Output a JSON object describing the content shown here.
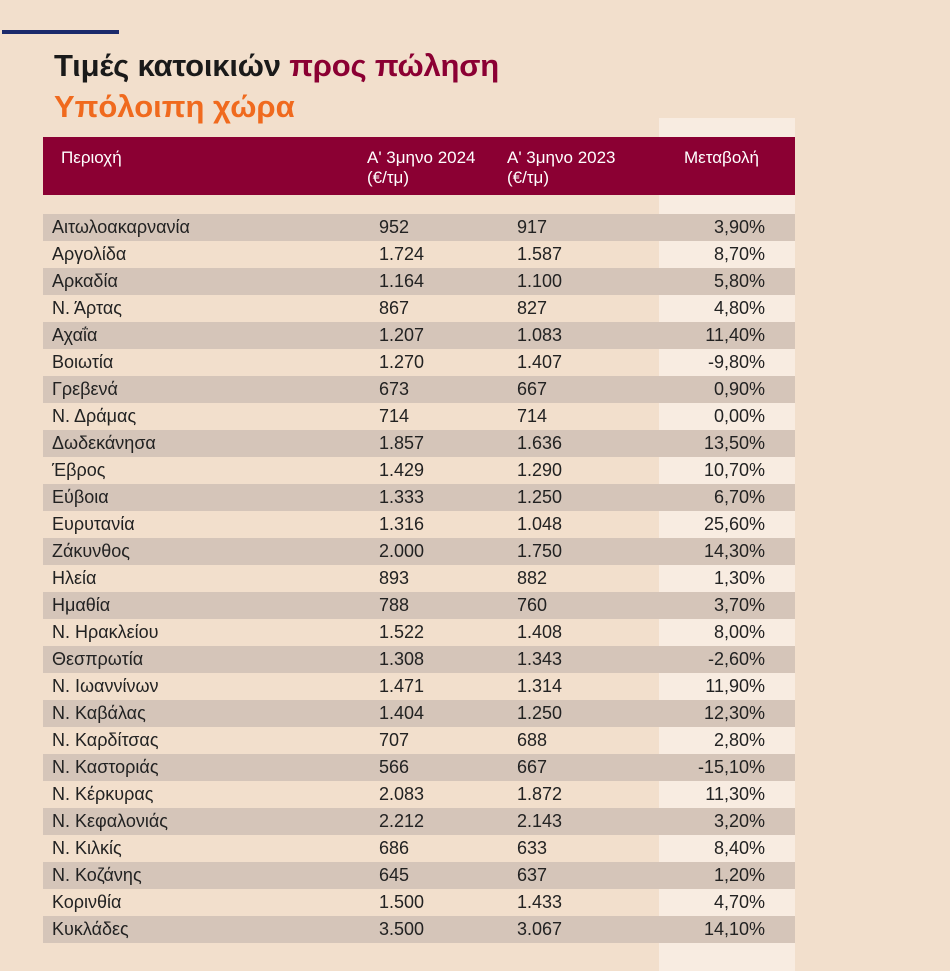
{
  "title": {
    "part1": "Τιμές κατοικιών",
    "part2": "προς πώληση"
  },
  "subtitle": "Υπόλοιπη χώρα",
  "colors": {
    "accent": "#8b0033",
    "orange": "#f06a1e",
    "navy": "#1b2a6b",
    "background": "#f2dfcc"
  },
  "table": {
    "headers": {
      "region": "Περιοχή",
      "q1_2024_line1": "Α' 3μηνο 2024",
      "q1_2024_line2": "(€/τμ)",
      "q1_2023_line1": "Α' 3μηνο 2023",
      "q1_2023_line2": "(€/τμ)",
      "change": "Μεταβολή"
    },
    "rows": [
      {
        "region": "Αιτωλοακαρνανία",
        "v2024": "952",
        "v2023": "917",
        "change": "3,90%"
      },
      {
        "region": "Αργολίδα",
        "v2024": "1.724",
        "v2023": "1.587",
        "change": "8,70%"
      },
      {
        "region": "Αρκαδία",
        "v2024": "1.164",
        "v2023": "1.100",
        "change": "5,80%"
      },
      {
        "region": "Ν. Άρτας",
        "v2024": "867",
        "v2023": "827",
        "change": "4,80%"
      },
      {
        "region": "Αχαΐα",
        "v2024": "1.207",
        "v2023": "1.083",
        "change": "11,40%"
      },
      {
        "region": "Βοιωτία",
        "v2024": "1.270",
        "v2023": "1.407",
        "change": "-9,80%"
      },
      {
        "region": "Γρεβενά",
        "v2024": "673",
        "v2023": "667",
        "change": "0,90%"
      },
      {
        "region": "Ν. Δράμας",
        "v2024": "714",
        "v2023": "714",
        "change": "0,00%"
      },
      {
        "region": "Δωδεκάνησα",
        "v2024": "1.857",
        "v2023": "1.636",
        "change": "13,50%"
      },
      {
        "region": "Έβρος",
        "v2024": "1.429",
        "v2023": "1.290",
        "change": "10,70%"
      },
      {
        "region": "Εύβοια",
        "v2024": "1.333",
        "v2023": "1.250",
        "change": "6,70%"
      },
      {
        "region": "Ευρυτανία",
        "v2024": "1.316",
        "v2023": "1.048",
        "change": "25,60%"
      },
      {
        "region": "Ζάκυνθος",
        "v2024": "2.000",
        "v2023": "1.750",
        "change": "14,30%"
      },
      {
        "region": "Ηλεία",
        "v2024": "893",
        "v2023": "882",
        "change": "1,30%"
      },
      {
        "region": "Ημαθία",
        "v2024": "788",
        "v2023": "760",
        "change": "3,70%"
      },
      {
        "region": "Ν. Ηρακλείου",
        "v2024": "1.522",
        "v2023": "1.408",
        "change": "8,00%"
      },
      {
        "region": "Θεσπρωτία",
        "v2024": "1.308",
        "v2023": "1.343",
        "change": "-2,60%"
      },
      {
        "region": "Ν. Ιωαννίνων",
        "v2024": "1.471",
        "v2023": "1.314",
        "change": "11,90%"
      },
      {
        "region": "Ν. Καβάλας",
        "v2024": "1.404",
        "v2023": "1.250",
        "change": "12,30%"
      },
      {
        "region": "Ν. Καρδίτσας",
        "v2024": "707",
        "v2023": "688",
        "change": "2,80%"
      },
      {
        "region": "Ν. Καστοριάς",
        "v2024": "566",
        "v2023": "667",
        "change": "-15,10%"
      },
      {
        "region": "Ν. Κέρκυρας",
        "v2024": "2.083",
        "v2023": "1.872",
        "change": "11,30%"
      },
      {
        "region": "Ν. Κεφαλονιάς",
        "v2024": "2.212",
        "v2023": "2.143",
        "change": "3,20%"
      },
      {
        "region": "Ν. Κιλκίς",
        "v2024": "686",
        "v2023": "633",
        "change": "8,40%"
      },
      {
        "region": "Ν. Κοζάνης",
        "v2024": "645",
        "v2023": "637",
        "change": "1,20%"
      },
      {
        "region": "Κορινθία",
        "v2024": "1.500",
        "v2023": "1.433",
        "change": "4,70%"
      },
      {
        "region": "Κυκλάδες",
        "v2024": "3.500",
        "v2023": "3.067",
        "change": "14,10%"
      }
    ]
  }
}
